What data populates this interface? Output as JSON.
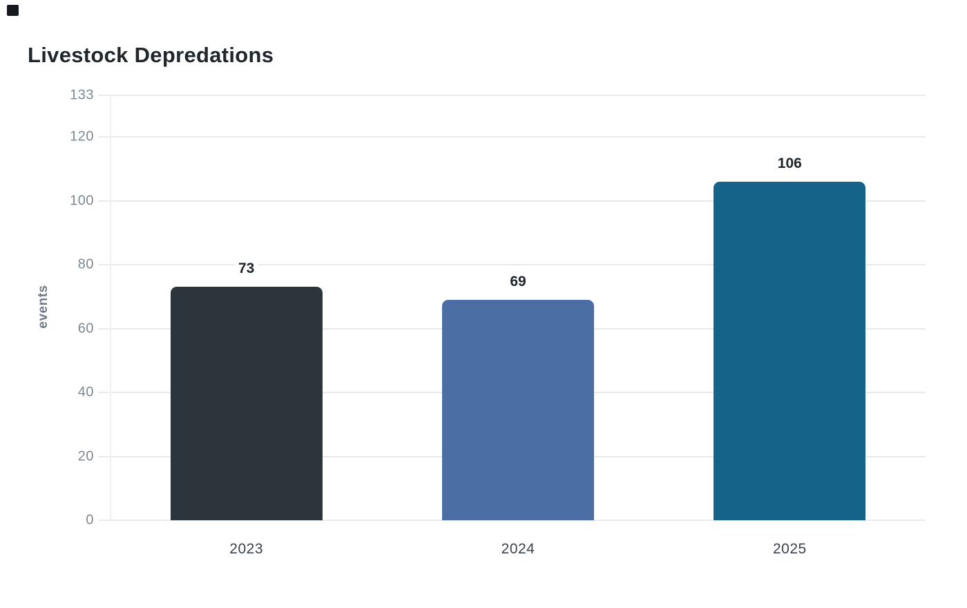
{
  "chart_data": {
    "type": "bar",
    "title": "Livestock Depredations",
    "ylabel": "events",
    "xlabel": "",
    "categories": [
      "2023",
      "2024",
      "2025"
    ],
    "values": [
      73,
      69,
      106
    ],
    "value_labels": [
      "73",
      "69",
      "106"
    ],
    "bar_colors": [
      "#2c353b",
      "#4b6ea4",
      "#166389"
    ],
    "ylim": [
      0,
      133
    ],
    "yticks": [
      0,
      20,
      40,
      60,
      80,
      100,
      120,
      133
    ],
    "grid": true,
    "legend_position": "none",
    "background": "#ffffff"
  },
  "ui": {
    "corner_mark_color": "#15191e"
  }
}
